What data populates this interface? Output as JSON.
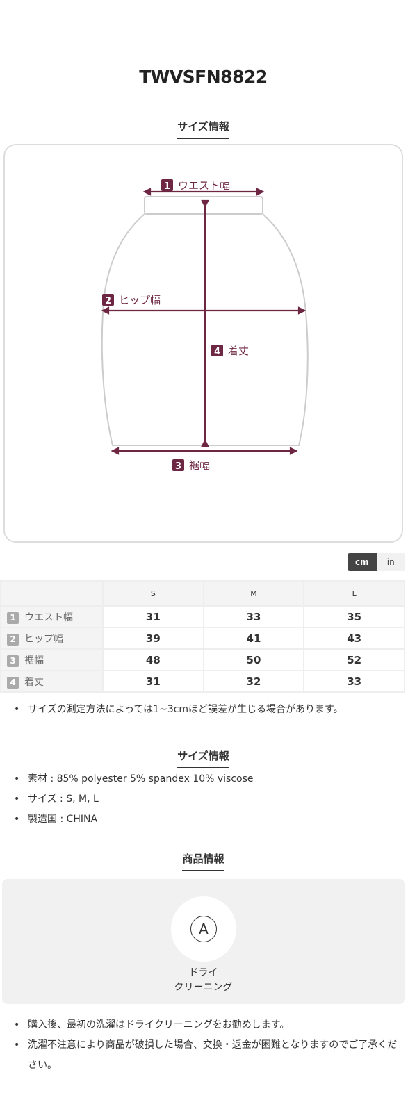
{
  "product_code": "TWVSFN8822",
  "size_section_title": "サイズ情報",
  "diagram": {
    "labels": [
      {
        "num": "1",
        "text": "ウエスト幅"
      },
      {
        "num": "2",
        "text": "ヒップ幅"
      },
      {
        "num": "3",
        "text": "裾幅"
      },
      {
        "num": "4",
        "text": "着丈"
      }
    ],
    "accent": "#6e2742"
  },
  "unit_toggle": {
    "cm": "cm",
    "in": "in",
    "selected": "cm"
  },
  "table": {
    "headers": [
      "S",
      "M",
      "L"
    ],
    "rows": [
      {
        "num": "1",
        "label": "ウエスト幅",
        "values": [
          "31",
          "33",
          "35"
        ]
      },
      {
        "num": "2",
        "label": "ヒップ幅",
        "values": [
          "39",
          "41",
          "43"
        ]
      },
      {
        "num": "3",
        "label": "裾幅",
        "values": [
          "48",
          "50",
          "52"
        ]
      },
      {
        "num": "4",
        "label": "着丈",
        "values": [
          "31",
          "32",
          "33"
        ]
      }
    ]
  },
  "size_note": "サイズの測定方法によっては1~3cmほど誤差が生じる場合があります。",
  "info_section_title": "サイズ情報",
  "info": [
    "素材 : 85% polyester 5% spandex 10% viscose",
    "サイズ : S, M, L",
    "製造国 : CHINA"
  ],
  "product_section_title": "商品情報",
  "care": {
    "icon_letter": "A",
    "line1": "ドライ",
    "line2": "クリーニング"
  },
  "care_notes": [
    "購入後、最初の洗濯はドライクリーニングをお勧めします。",
    "洗濯不注意により商品が破損した場合、交換・返金が困難となりますのでご了承ください。"
  ]
}
